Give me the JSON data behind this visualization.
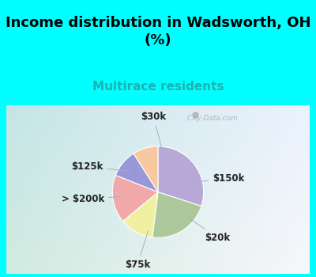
{
  "title": "Income distribution in Wadsworth, OH\n(%)",
  "subtitle": "Multirace residents",
  "labels": [
    "$150k",
    "$20k",
    "$75k",
    "> $200k",
    "$125k",
    "$30k"
  ],
  "sizes": [
    30,
    22,
    12,
    17,
    10,
    9
  ],
  "colors": [
    "#b8a8d8",
    "#adc89a",
    "#f0f0a0",
    "#f0a8a8",
    "#9898d8",
    "#f8c8a0"
  ],
  "bg_top": "#00ffff",
  "bg_chart_tl": "#d8ece0",
  "bg_chart_br": "#e8f0f8",
  "startangle": 90,
  "title_fontsize": 13,
  "subtitle_fontsize": 11,
  "label_fontsize": 8.5,
  "watermark": " City-Data.com"
}
